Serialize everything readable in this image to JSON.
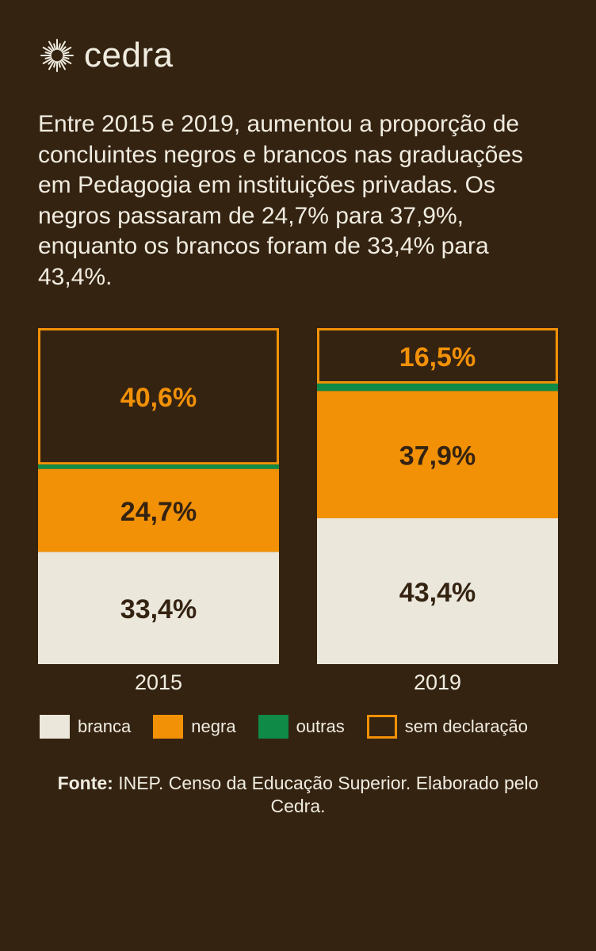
{
  "brand": {
    "name": "cedra"
  },
  "headline": "Entre 2015 e 2019, aumentou a proporção de concluintes negros e brancos nas graduações em Pedagogia em instituições privadas. Os negros passaram de 24,7% para 37,9%, enquanto os brancos foram de 33,4% para 43,4%.",
  "colors": {
    "background": "#352312",
    "branca": "#ebe7db",
    "negra": "#f29106",
    "outras": "#0f8a47",
    "sem_declaracao_outline": "#f29106",
    "text_light": "#f0ece0",
    "text_dark": "#352312"
  },
  "chart_data": {
    "type": "bar",
    "stacked": true,
    "categories": [
      "2015",
      "2019"
    ],
    "series": [
      {
        "name": "branca",
        "values": [
          33.4,
          43.4
        ],
        "labels": [
          "33,4%",
          "43,4%"
        ]
      },
      {
        "name": "negra",
        "values": [
          24.7,
          37.9
        ],
        "labels": [
          "24,7%",
          "37,9%"
        ]
      },
      {
        "name": "outras",
        "values": [
          1.3,
          2.2
        ],
        "labels": [
          "",
          ""
        ]
      },
      {
        "name": "sem declaração",
        "values": [
          40.6,
          16.5
        ],
        "labels": [
          "40,6%",
          "16,5%"
        ]
      }
    ],
    "ylim": [
      0,
      100
    ],
    "legend_position": "bottom"
  },
  "legend": [
    {
      "label": "branca",
      "key": "branca"
    },
    {
      "label": "negra",
      "key": "negra"
    },
    {
      "label": "outras",
      "key": "outras"
    },
    {
      "label": "sem declaração",
      "key": "sem_declaracao"
    }
  ],
  "source": {
    "prefix": "Fonte:",
    "text": " INEP. Censo da Educação Superior. Elaborado pelo Cedra."
  }
}
